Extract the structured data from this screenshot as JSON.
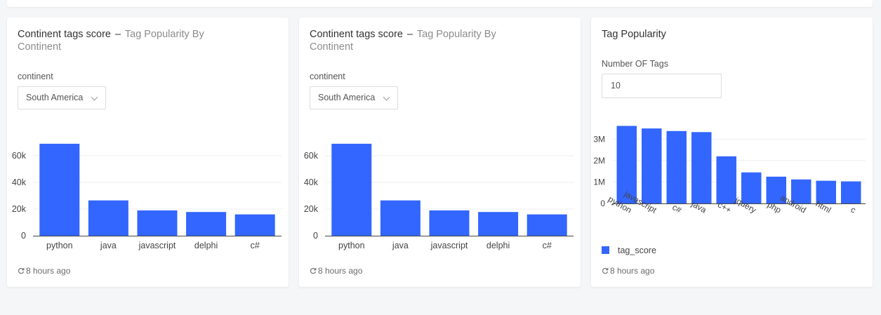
{
  "colors": {
    "bar": "#3366ff",
    "axis": "#444444",
    "grid": "#eeeeee"
  },
  "widgets": [
    {
      "title": "Continent tags score",
      "separator": "–",
      "subtitle": "Tag Popularity By Continent",
      "param_label": "continent",
      "param_value": "South America",
      "footer": "8 hours ago",
      "footer_icon": "refresh-icon"
    },
    {
      "title": "Continent tags score",
      "separator": "–",
      "subtitle": "Tag Popularity By Continent",
      "param_label": "continent",
      "param_value": "South America",
      "footer": "8 hours ago",
      "footer_icon": "refresh-icon"
    },
    {
      "title": "Tag Popularity",
      "param_label": "Number OF Tags",
      "param_value": "10",
      "legend": "tag_score",
      "footer": "8 hours ago",
      "footer_icon": "refresh-icon"
    }
  ],
  "chart_data": [
    {
      "type": "bar",
      "categories": [
        "python",
        "java",
        "javascript",
        "delphi",
        "c#"
      ],
      "values": [
        69000,
        26500,
        19000,
        17800,
        16000
      ],
      "yticks": [
        "0",
        "20k",
        "40k",
        "60k"
      ],
      "ylim": [
        0,
        70000
      ],
      "grid": true
    },
    {
      "type": "bar",
      "categories": [
        "python",
        "java",
        "javascript",
        "delphi",
        "c#"
      ],
      "values": [
        69000,
        26500,
        19000,
        17800,
        16000
      ],
      "yticks": [
        "0",
        "20k",
        "40k",
        "60k"
      ],
      "ylim": [
        0,
        70000
      ],
      "grid": true
    },
    {
      "type": "bar",
      "categories": [
        "python",
        "javascript",
        "c#",
        "java",
        "c++",
        "jquery",
        "php",
        "android",
        "html",
        "c"
      ],
      "values": [
        3620000,
        3500000,
        3380000,
        3330000,
        2200000,
        1450000,
        1250000,
        1120000,
        1060000,
        1030000
      ],
      "yticks": [
        "0",
        "1M",
        "2M",
        "3M"
      ],
      "ylim": [
        0,
        3700000
      ],
      "series": [
        {
          "name": "tag_score"
        }
      ],
      "grid": true
    }
  ]
}
